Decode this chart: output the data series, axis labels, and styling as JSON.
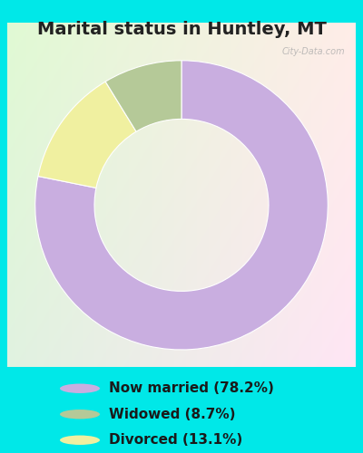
{
  "title": "Marital status in Huntley, MT",
  "slices": [
    78.2,
    8.7,
    13.1
  ],
  "labels": [
    "Now married (78.2%)",
    "Widowed (8.7%)",
    "Divorced (13.1%)"
  ],
  "colors": [
    "#c9aee0",
    "#b5c998",
    "#f0f0a0"
  ],
  "background_cyan": "#00e8e8",
  "title_fontsize": 14,
  "legend_fontsize": 11,
  "watermark": "City-Data.com",
  "slice_order": [
    0,
    2,
    1
  ]
}
